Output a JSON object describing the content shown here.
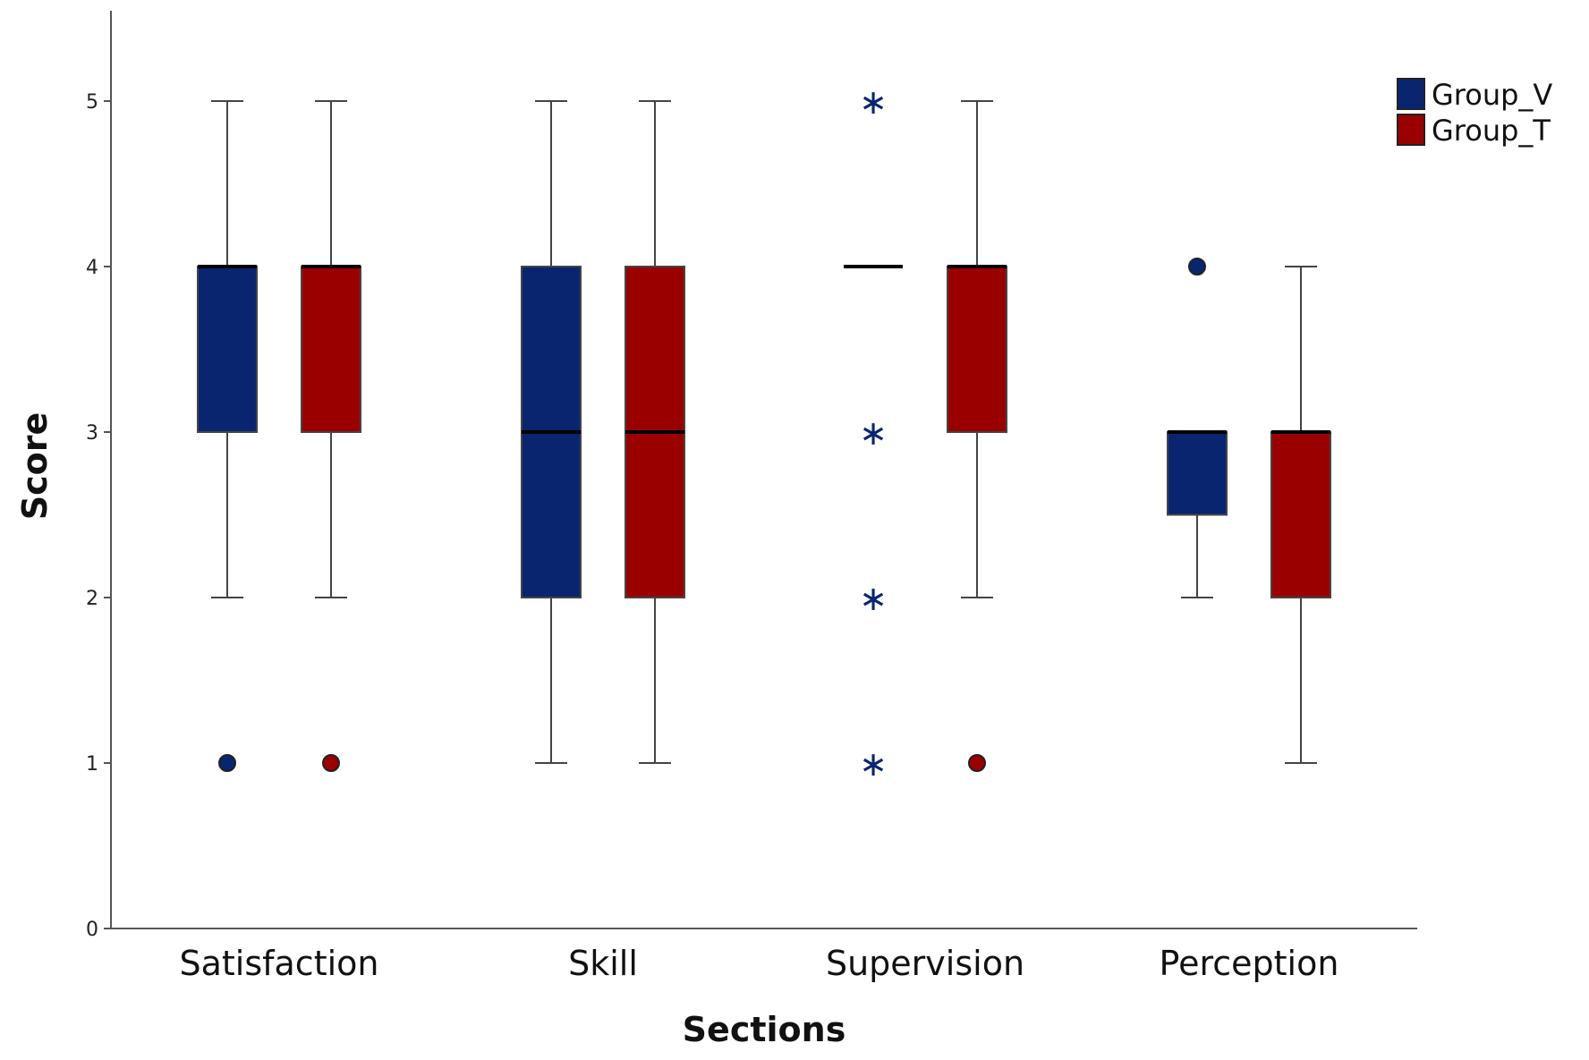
{
  "chart_data": {
    "type": "boxplot",
    "title": "",
    "xlabel": "Sections",
    "ylabel": "Score",
    "ylim": [
      0,
      5.5
    ],
    "yticks": [
      "0",
      "1",
      "2",
      "3",
      "4",
      "5"
    ],
    "categories": [
      "Satisfaction",
      "Skill",
      "Supervision",
      "Perception"
    ],
    "legend_position": "top-right",
    "series": [
      {
        "name": "Group_V",
        "color": "#0a2570",
        "boxes": [
          {
            "category": "Satisfaction",
            "whisker_low": 2,
            "q1": 3,
            "median": 4,
            "q3": 4,
            "whisker_high": 5,
            "outliers": [
              1
            ],
            "extremes": []
          },
          {
            "category": "Skill",
            "whisker_low": 1,
            "q1": 2,
            "median": 3,
            "q3": 4,
            "whisker_high": 5,
            "outliers": [],
            "extremes": []
          },
          {
            "category": "Supervision",
            "whisker_low": 4,
            "q1": 4,
            "median": 4,
            "q3": 4,
            "whisker_high": 4,
            "outliers": [],
            "extremes": [
              5,
              3,
              2,
              1
            ]
          },
          {
            "category": "Perception",
            "whisker_low": 2,
            "q1": 2.5,
            "median": 3,
            "q3": 3,
            "whisker_high": 3,
            "outliers": [
              4
            ],
            "extremes": []
          }
        ]
      },
      {
        "name": "Group_T",
        "color": "#9b0000",
        "boxes": [
          {
            "category": "Satisfaction",
            "whisker_low": 2,
            "q1": 3,
            "median": 4,
            "q3": 4,
            "whisker_high": 5,
            "outliers": [
              1
            ],
            "extremes": []
          },
          {
            "category": "Skill",
            "whisker_low": 1,
            "q1": 2,
            "median": 3,
            "q3": 4,
            "whisker_high": 5,
            "outliers": [],
            "extremes": []
          },
          {
            "category": "Supervision",
            "whisker_low": 2,
            "q1": 3,
            "median": 4,
            "q3": 4,
            "whisker_high": 5,
            "outliers": [
              1
            ],
            "extremes": []
          },
          {
            "category": "Perception",
            "whisker_low": 1,
            "q1": 2,
            "median": 3,
            "q3": 3,
            "whisker_high": 4,
            "outliers": [],
            "extremes": []
          }
        ]
      }
    ]
  }
}
